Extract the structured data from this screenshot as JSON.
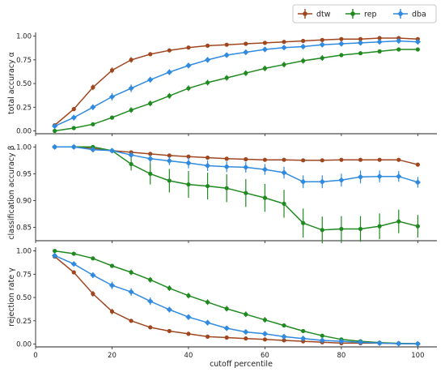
{
  "chart_data": [
    {
      "type": "line",
      "ylabel": "total accuracy α",
      "ylim": [
        -0.03,
        1.04
      ],
      "yticks": [
        "0.00",
        "0.25",
        "0.50",
        "0.75",
        "1.00"
      ],
      "x": [
        5,
        10,
        15,
        20,
        25,
        30,
        35,
        40,
        45,
        50,
        55,
        60,
        65,
        70,
        75,
        80,
        85,
        90,
        95,
        100
      ],
      "series": [
        {
          "name": "dtw",
          "color": "#a0461f",
          "values": [
            0.06,
            0.23,
            0.46,
            0.64,
            0.75,
            0.81,
            0.85,
            0.88,
            0.9,
            0.91,
            0.92,
            0.93,
            0.94,
            0.95,
            0.96,
            0.97,
            0.97,
            0.98,
            0.98,
            0.97
          ],
          "err": [
            0.01,
            0.02,
            0.03,
            0.03,
            0.03,
            0.02,
            0.02,
            0.02,
            0.01,
            0.01,
            0.01,
            0.01,
            0.01,
            0.01,
            0.01,
            0.01,
            0.01,
            0.01,
            0.01,
            0.01
          ]
        },
        {
          "name": "rep",
          "color": "#1f8a1f",
          "values": [
            0.0,
            0.03,
            0.07,
            0.14,
            0.22,
            0.29,
            0.37,
            0.45,
            0.51,
            0.56,
            0.61,
            0.66,
            0.7,
            0.74,
            0.77,
            0.8,
            0.82,
            0.84,
            0.86,
            0.86
          ],
          "err": [
            0.01,
            0.01,
            0.02,
            0.02,
            0.03,
            0.03,
            0.03,
            0.03,
            0.03,
            0.03,
            0.03,
            0.03,
            0.03,
            0.03,
            0.03,
            0.02,
            0.02,
            0.02,
            0.02,
            0.02
          ]
        },
        {
          "name": "dba",
          "color": "#2f8ae0",
          "values": [
            0.05,
            0.14,
            0.25,
            0.36,
            0.45,
            0.54,
            0.62,
            0.69,
            0.75,
            0.8,
            0.83,
            0.86,
            0.88,
            0.89,
            0.91,
            0.92,
            0.93,
            0.94,
            0.95,
            0.94
          ],
          "err": [
            0.01,
            0.03,
            0.03,
            0.04,
            0.04,
            0.03,
            0.03,
            0.03,
            0.03,
            0.02,
            0.02,
            0.02,
            0.02,
            0.02,
            0.02,
            0.01,
            0.01,
            0.01,
            0.01,
            0.01
          ]
        }
      ]
    },
    {
      "type": "line",
      "ylabel": "classification accuracy β",
      "ylim": [
        0.825,
        1.005
      ],
      "yticks": [
        "0.85",
        "0.90",
        "0.95",
        "1.00"
      ],
      "x": [
        5,
        10,
        15,
        20,
        25,
        30,
        35,
        40,
        45,
        50,
        55,
        60,
        65,
        70,
        75,
        80,
        85,
        90,
        95,
        100
      ],
      "series": [
        {
          "name": "dtw",
          "color": "#a0461f",
          "values": [
            1.0,
            1.0,
            0.997,
            0.993,
            0.99,
            0.987,
            0.984,
            0.982,
            0.98,
            0.978,
            0.977,
            0.976,
            0.976,
            0.975,
            0.975,
            0.976,
            0.976,
            0.976,
            0.976,
            0.967
          ],
          "err": [
            0,
            0,
            0.001,
            0.002,
            0.002,
            0.002,
            0.002,
            0.002,
            0.002,
            0.002,
            0.002,
            0.002,
            0.003,
            0.003,
            0.003,
            0.003,
            0.003,
            0.003,
            0.003,
            0.003
          ]
        },
        {
          "name": "rep",
          "color": "#1f8a1f",
          "values": [
            1.0,
            1.0,
            1.0,
            0.993,
            0.968,
            0.95,
            0.937,
            0.93,
            0.927,
            0.923,
            0.914,
            0.905,
            0.894,
            0.858,
            0.845,
            0.847,
            0.847,
            0.852,
            0.861,
            0.852
          ],
          "err": [
            0,
            0,
            0.002,
            0.004,
            0.012,
            0.02,
            0.022,
            0.025,
            0.025,
            0.026,
            0.026,
            0.026,
            0.026,
            0.027,
            0.025,
            0.024,
            0.024,
            0.024,
            0.022,
            0.021
          ]
        },
        {
          "name": "dba",
          "color": "#2f8ae0",
          "values": [
            1.0,
            1.0,
            0.995,
            0.993,
            0.985,
            0.978,
            0.974,
            0.97,
            0.965,
            0.963,
            0.962,
            0.958,
            0.952,
            0.935,
            0.935,
            0.938,
            0.944,
            0.945,
            0.945,
            0.934
          ],
          "err": [
            0,
            0.002,
            0.003,
            0.004,
            0.006,
            0.008,
            0.008,
            0.01,
            0.01,
            0.01,
            0.01,
            0.01,
            0.011,
            0.012,
            0.012,
            0.012,
            0.012,
            0.011,
            0.01,
            0.01
          ]
        }
      ]
    },
    {
      "type": "line",
      "ylabel": "rejection rate γ",
      "xlabel": "cutoff percentile",
      "xlim": [
        0,
        105
      ],
      "xticks": [
        "0",
        "20",
        "40",
        "60",
        "80",
        "100"
      ],
      "ylim": [
        -0.03,
        1.04
      ],
      "yticks": [
        "0.00",
        "0.25",
        "0.50",
        "0.75",
        "1.00"
      ],
      "x": [
        5,
        10,
        15,
        20,
        25,
        30,
        35,
        40,
        45,
        50,
        55,
        60,
        65,
        70,
        75,
        80,
        85,
        90,
        95,
        100
      ],
      "series": [
        {
          "name": "dtw",
          "color": "#a0461f",
          "values": [
            0.94,
            0.77,
            0.54,
            0.35,
            0.25,
            0.18,
            0.14,
            0.11,
            0.08,
            0.07,
            0.06,
            0.05,
            0.04,
            0.03,
            0.02,
            0.01,
            0.01,
            0.01,
            0.005,
            0.003
          ],
          "err": [
            0.01,
            0.02,
            0.03,
            0.03,
            0.02,
            0.02,
            0.02,
            0.02,
            0.01,
            0.01,
            0.01,
            0.01,
            0.01,
            0.01,
            0.01,
            0.005,
            0.005,
            0.005,
            0.005,
            0.003
          ]
        },
        {
          "name": "rep",
          "color": "#1f8a1f",
          "values": [
            1.0,
            0.97,
            0.92,
            0.84,
            0.77,
            0.69,
            0.6,
            0.52,
            0.45,
            0.38,
            0.32,
            0.26,
            0.2,
            0.14,
            0.09,
            0.05,
            0.03,
            0.015,
            0.008,
            0.004
          ],
          "err": [
            0.005,
            0.01,
            0.02,
            0.02,
            0.03,
            0.03,
            0.03,
            0.03,
            0.03,
            0.03,
            0.03,
            0.03,
            0.02,
            0.02,
            0.02,
            0.01,
            0.01,
            0.01,
            0.005,
            0.004
          ]
        },
        {
          "name": "dba",
          "color": "#2f8ae0",
          "values": [
            0.95,
            0.86,
            0.74,
            0.63,
            0.56,
            0.46,
            0.37,
            0.29,
            0.23,
            0.17,
            0.13,
            0.11,
            0.08,
            0.06,
            0.04,
            0.03,
            0.02,
            0.01,
            0.005,
            0.003
          ],
          "err": [
            0.01,
            0.02,
            0.03,
            0.04,
            0.04,
            0.04,
            0.03,
            0.03,
            0.03,
            0.02,
            0.02,
            0.02,
            0.02,
            0.01,
            0.01,
            0.01,
            0.01,
            0.005,
            0.005,
            0.003
          ]
        }
      ]
    }
  ],
  "legend": {
    "position": "top-right",
    "items": [
      {
        "label": "dtw",
        "color": "#a0461f"
      },
      {
        "label": "rep",
        "color": "#1f8a1f"
      },
      {
        "label": "dba",
        "color": "#2f8ae0"
      }
    ]
  }
}
